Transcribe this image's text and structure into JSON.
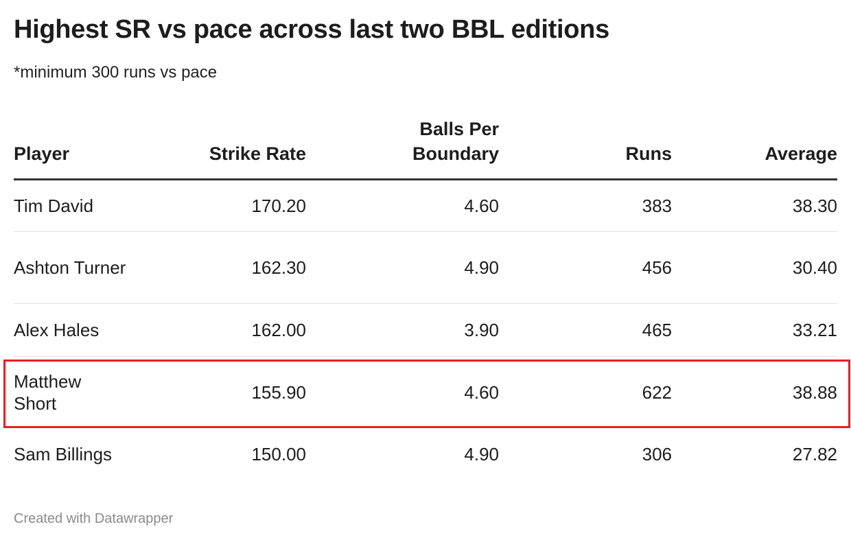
{
  "title": "Highest SR vs pace across last two BBL editions",
  "subtitle": "*minimum 300 runs vs pace",
  "footer": "Created with Datawrapper",
  "highlight_color": "#ed1c24",
  "chart_data": {
    "type": "table",
    "columns": [
      "Player",
      "Strike Rate",
      "Balls Per Boundary",
      "Runs",
      "Average"
    ],
    "rows": [
      [
        "Tim David",
        "170.20",
        "4.60",
        "383",
        "38.30"
      ],
      [
        "Ashton Turner",
        "162.30",
        "4.90",
        "456",
        "30.40"
      ],
      [
        "Alex Hales",
        "162.00",
        "3.90",
        "465",
        "33.21"
      ],
      [
        "Matthew Short",
        "155.90",
        "4.60",
        "622",
        "38.88"
      ],
      [
        "Sam Billings",
        "150.00",
        "4.90",
        "306",
        "27.82"
      ]
    ],
    "highlighted_row": "Matthew Short"
  }
}
